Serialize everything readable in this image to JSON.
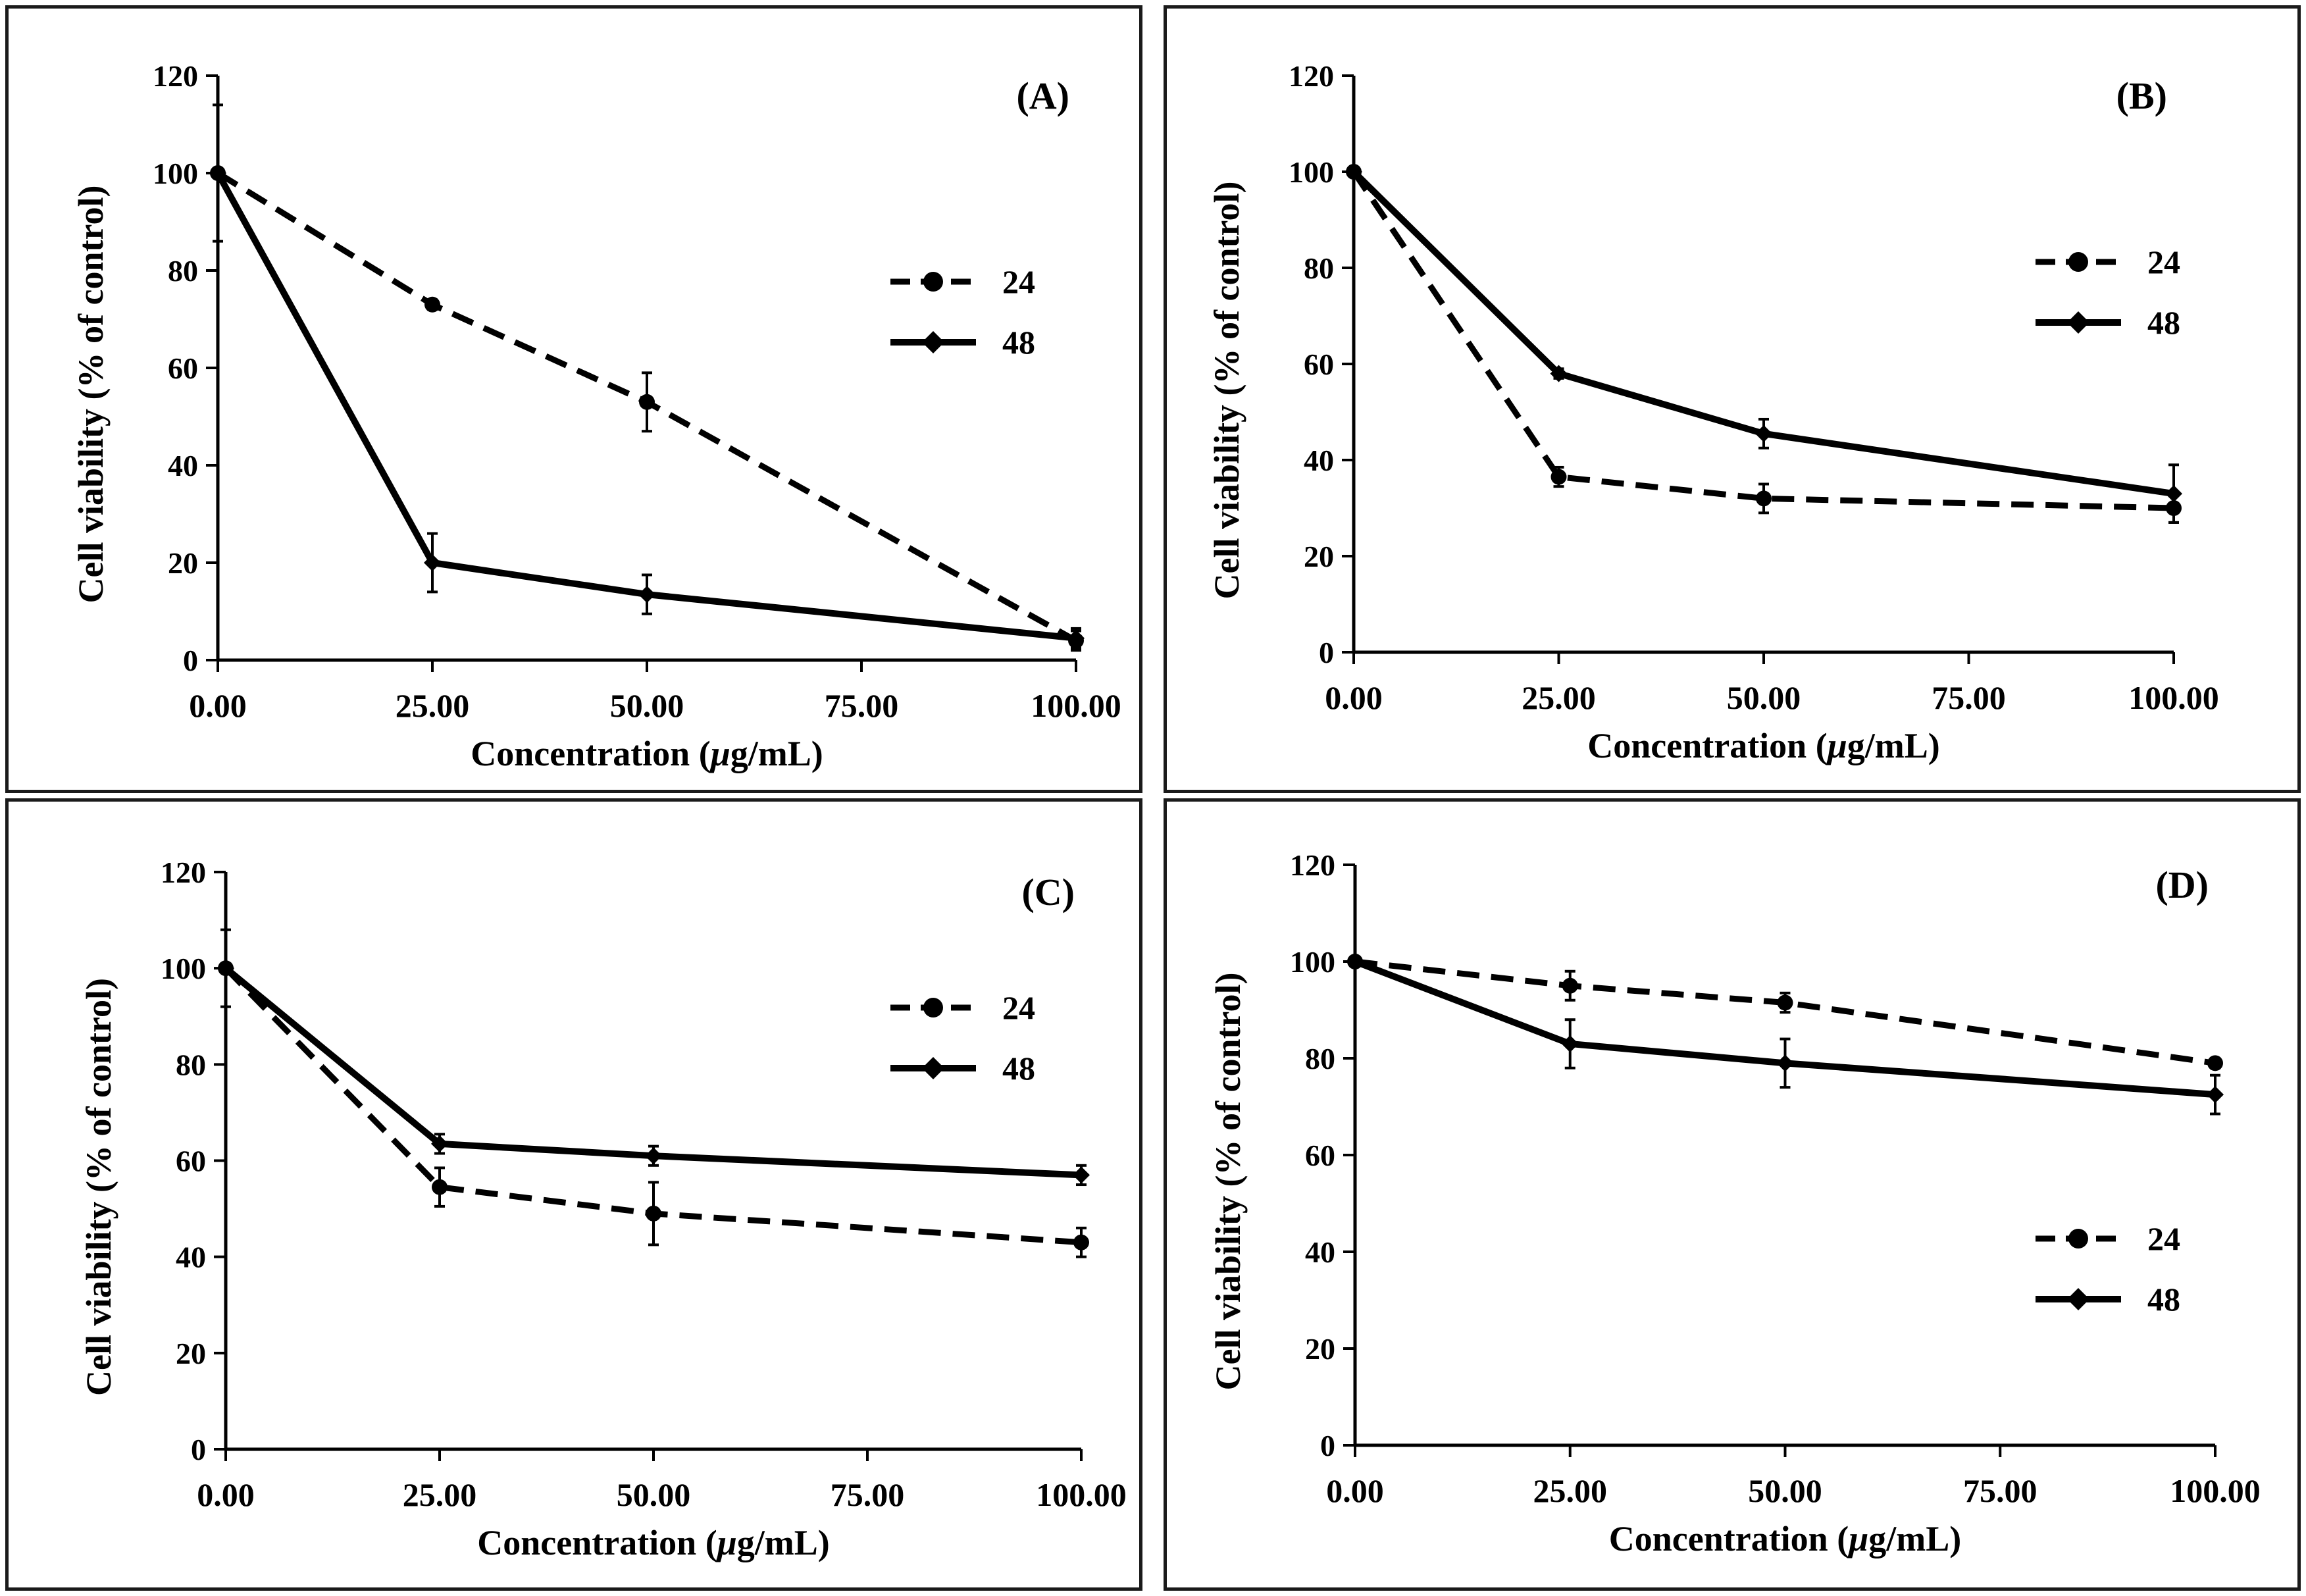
{
  "figure": {
    "chart_data": [
      {
        "type": "line",
        "panel_label": "(A)",
        "xlabel_prefix": "Concentration (",
        "xlabel_mu": "μ",
        "xlabel_suffix": "g/mL)",
        "ylabel": "Cell viability (% of control)",
        "x": [
          0,
          25,
          50,
          100
        ],
        "x_tick_values": [
          0,
          25,
          50,
          75,
          100
        ],
        "x_tick_labels": [
          "0.00",
          "25.00",
          "50.00",
          "75.00",
          "100.00"
        ],
        "y_tick_labels": [
          "0",
          "20",
          "40",
          "60",
          "80",
          "100",
          "120"
        ],
        "ylim": [
          0,
          120
        ],
        "xlim": [
          0,
          100
        ],
        "legend_position": "upper-right",
        "series": [
          {
            "name": "24",
            "style": "dashed",
            "marker": "circle",
            "values": [
              100,
              73,
              53,
              4
            ],
            "errors": [
              0,
              1,
              6,
              2
            ]
          },
          {
            "name": "48",
            "style": "solid",
            "marker": "diamond",
            "values": [
              100,
              20,
              13.5,
              4.5
            ],
            "errors": [
              14,
              6,
              4,
              2
            ]
          }
        ]
      },
      {
        "type": "line",
        "panel_label": "(B)",
        "xlabel_prefix": "Concentration (",
        "xlabel_mu": "μ",
        "xlabel_suffix": "g/mL)",
        "ylabel": "Cell viability (% of control)",
        "x": [
          0,
          25,
          50,
          100
        ],
        "x_tick_values": [
          0,
          25,
          50,
          75,
          100
        ],
        "x_tick_labels": [
          "0.00",
          "25.00",
          "50.00",
          "75.00",
          "100.00"
        ],
        "y_tick_labels": [
          "0",
          "20",
          "40",
          "60",
          "80",
          "100",
          "120"
        ],
        "ylim": [
          0,
          120
        ],
        "xlim": [
          0,
          100
        ],
        "legend_position": "upper-right",
        "series": [
          {
            "name": "24",
            "style": "dashed",
            "marker": "circle",
            "values": [
              100,
              36.5,
              32,
              30
            ],
            "errors": [
              0,
              2,
              3,
              3
            ]
          },
          {
            "name": "48",
            "style": "solid",
            "marker": "diamond",
            "values": [
              100,
              58,
              45.5,
              33
            ],
            "errors": [
              0,
              1,
              3,
              6
            ]
          }
        ]
      },
      {
        "type": "line",
        "panel_label": "(C)",
        "xlabel_prefix": "Concentration (",
        "xlabel_mu": "μ",
        "xlabel_suffix": "g/mL)",
        "ylabel": "Cell viability (% of control)",
        "x": [
          0,
          25,
          50,
          100
        ],
        "x_tick_values": [
          0,
          25,
          50,
          75,
          100
        ],
        "x_tick_labels": [
          "0.00",
          "25.00",
          "50.00",
          "75.00",
          "100.00"
        ],
        "y_tick_labels": [
          "0",
          "20",
          "40",
          "60",
          "80",
          "100",
          "120"
        ],
        "ylim": [
          0,
          120
        ],
        "xlim": [
          0,
          100
        ],
        "legend_position": "upper-right",
        "series": [
          {
            "name": "24",
            "style": "dashed",
            "marker": "circle",
            "values": [
              100,
              54.5,
              49,
              43
            ],
            "errors": [
              0,
              4,
              6.5,
              3
            ]
          },
          {
            "name": "48",
            "style": "solid",
            "marker": "diamond",
            "values": [
              100,
              63.5,
              61,
              57
            ],
            "errors": [
              8,
              2,
              2,
              2
            ]
          }
        ]
      },
      {
        "type": "line",
        "panel_label": "(D)",
        "xlabel_prefix": "Concentration (",
        "xlabel_mu": "μ",
        "xlabel_suffix": "g/mL)",
        "ylabel": "Cell viability (% of control)",
        "x": [
          0,
          25,
          50,
          100
        ],
        "x_tick_values": [
          0,
          25,
          50,
          75,
          100
        ],
        "x_tick_labels": [
          "0.00",
          "25.00",
          "50.00",
          "75.00",
          "100.00"
        ],
        "y_tick_labels": [
          "0",
          "20",
          "40",
          "60",
          "80",
          "100",
          "120"
        ],
        "ylim": [
          0,
          120
        ],
        "xlim": [
          0,
          100
        ],
        "legend_position": "middle-right",
        "series": [
          {
            "name": "24",
            "style": "dashed",
            "marker": "circle",
            "values": [
              100,
              95,
              91.5,
              79
            ],
            "errors": [
              0,
              3,
              2,
              1
            ]
          },
          {
            "name": "48",
            "style": "solid",
            "marker": "diamond",
            "values": [
              100,
              83,
              79,
              72.5
            ],
            "errors": [
              0,
              5,
              5,
              4
            ]
          }
        ]
      }
    ]
  }
}
